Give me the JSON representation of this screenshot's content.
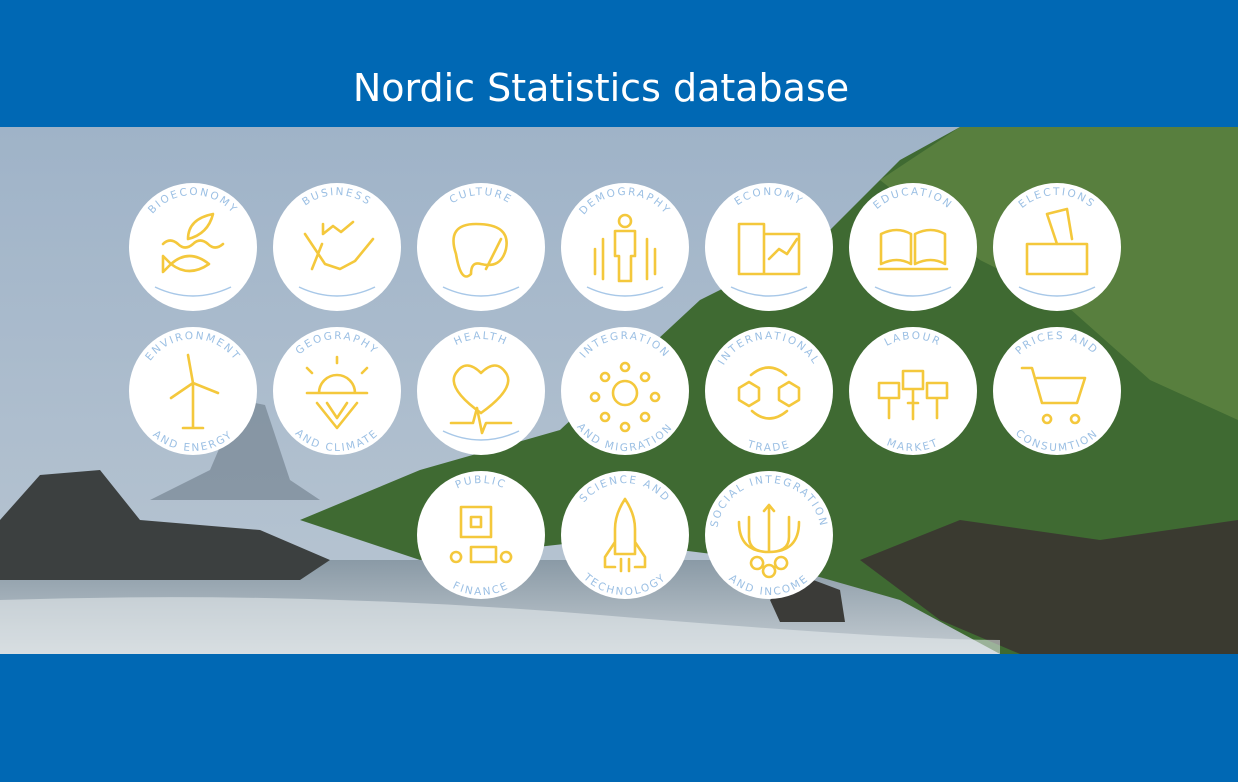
{
  "header": {
    "title": "Nordic Statistics database"
  },
  "topics": [
    {
      "top": "BIOECONOMY"
    },
    {
      "top": "BUSINESS"
    },
    {
      "top": "CULTURE"
    },
    {
      "top": "DEMOGRAPHY"
    },
    {
      "top": "ECONOMY"
    },
    {
      "top": "EDUCATION"
    },
    {
      "top": "ELECTIONS"
    },
    {
      "top": "ENVIRONMENT",
      "bottom": "AND ENERGY"
    },
    {
      "top": "GEOGRAPHY",
      "bottom": "AND CLIMATE"
    },
    {
      "top": "HEALTH"
    },
    {
      "top": "INTEGRATION",
      "bottom": "AND MIGRATION"
    },
    {
      "top": "INTERNATIONAL",
      "bottom": "TRADE"
    },
    {
      "top": "LABOUR",
      "bottom": "MARKET"
    },
    {
      "top": "PRICES AND",
      "bottom": "CONSUMTION"
    },
    {
      "top": "PUBLIC",
      "bottom": "FINANCE"
    },
    {
      "top": "SCIENCE AND",
      "bottom": "TECHNOLOGY"
    },
    {
      "top": "SOCIAL INTEGRATION",
      "bottom": "AND INCOME"
    }
  ]
}
